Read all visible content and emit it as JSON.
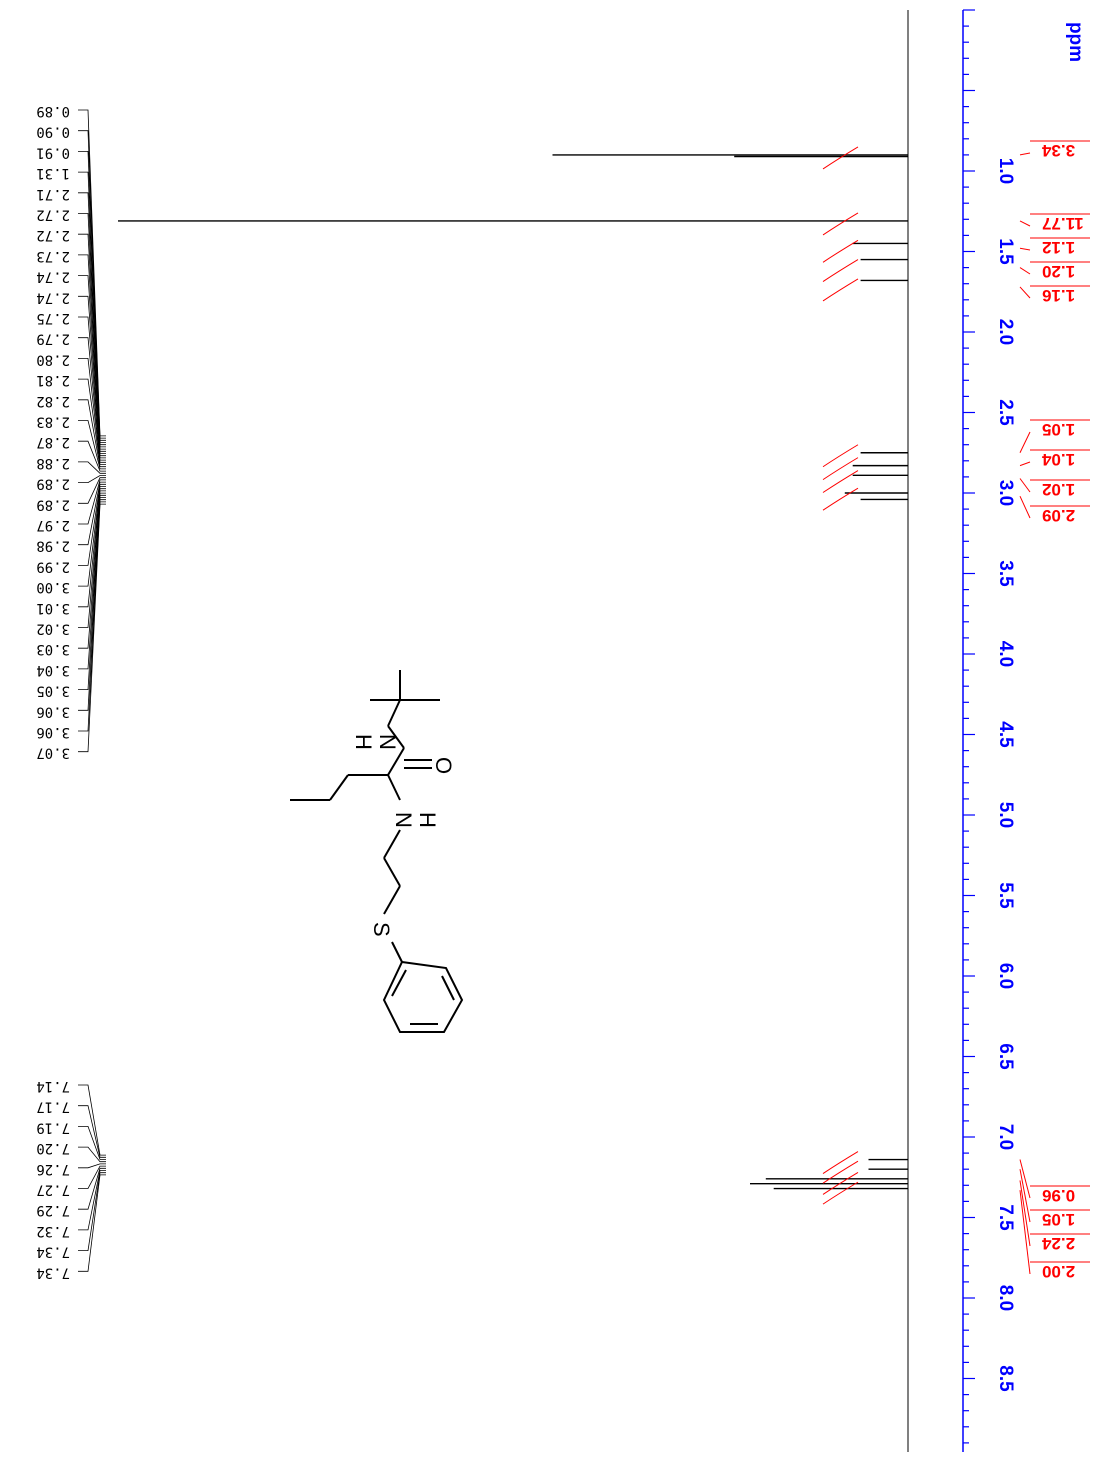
{
  "chart_data": {
    "type": "line",
    "title": "",
    "xlabel": "ppm",
    "ylabel": "",
    "axis": {
      "min": 0.0,
      "max": 9.0,
      "reversed": true,
      "grid": false,
      "orientation": "vertical"
    },
    "ticks": [
      "1.0",
      "1.5",
      "2.0",
      "2.5",
      "3.0",
      "3.5",
      "4.0",
      "4.5",
      "5.0",
      "5.5",
      "6.0",
      "6.5",
      "7.0",
      "7.5",
      "8.0",
      "8.5"
    ],
    "tick_values": [
      1.0,
      1.5,
      2.0,
      2.5,
      3.0,
      3.5,
      4.0,
      4.5,
      5.0,
      5.5,
      6.0,
      6.5,
      7.0,
      7.5,
      8.0,
      8.5
    ],
    "peak_labels_group1": [
      "0.89",
      "0.90",
      "0.91",
      "1.31",
      "2.71",
      "2.72",
      "2.72",
      "2.73",
      "2.74",
      "2.74",
      "2.75",
      "2.79",
      "2.80",
      "2.81",
      "2.82",
      "2.83",
      "2.87",
      "2.88",
      "2.89",
      "2.89",
      "2.97",
      "2.98",
      "2.99",
      "3.00",
      "3.01",
      "3.02",
      "3.03",
      "3.04",
      "3.05",
      "3.06",
      "3.06",
      "3.07"
    ],
    "peak_labels_group2": [
      "7.14",
      "7.17",
      "7.19",
      "7.20",
      "7.26",
      "7.27",
      "7.29",
      "7.32",
      "7.34",
      "7.34"
    ],
    "peaks": [
      {
        "ppm": 0.9,
        "height": 0.45
      },
      {
        "ppm": 0.91,
        "height": 0.22
      },
      {
        "ppm": 1.31,
        "height": 1.0
      },
      {
        "ppm": 1.45,
        "height": 0.07
      },
      {
        "ppm": 1.55,
        "height": 0.06
      },
      {
        "ppm": 1.68,
        "height": 0.06
      },
      {
        "ppm": 2.75,
        "height": 0.06
      },
      {
        "ppm": 2.83,
        "height": 0.07
      },
      {
        "ppm": 2.89,
        "height": 0.07
      },
      {
        "ppm": 3.0,
        "height": 0.08
      },
      {
        "ppm": 3.04,
        "height": 0.06
      },
      {
        "ppm": 7.14,
        "height": 0.05
      },
      {
        "ppm": 7.2,
        "height": 0.05
      },
      {
        "ppm": 7.26,
        "height": 0.18
      },
      {
        "ppm": 7.29,
        "height": 0.2
      },
      {
        "ppm": 7.32,
        "height": 0.17
      }
    ],
    "integrals": [
      {
        "value": "3.34",
        "ppm": 0.9
      },
      {
        "value": "11.77",
        "ppm": 1.31
      },
      {
        "value": "1.12",
        "ppm": 1.48
      },
      {
        "value": "1.20",
        "ppm": 1.6
      },
      {
        "value": "1.16",
        "ppm": 1.72
      },
      {
        "value": "1.05",
        "ppm": 2.75
      },
      {
        "value": "1.04",
        "ppm": 2.83
      },
      {
        "value": "1.02",
        "ppm": 2.91
      },
      {
        "value": "2.09",
        "ppm": 3.02
      },
      {
        "value": "0.96",
        "ppm": 7.14
      },
      {
        "value": "1.05",
        "ppm": 7.2
      },
      {
        "value": "2.24",
        "ppm": 7.27
      },
      {
        "value": "2.00",
        "ppm": 7.33
      }
    ],
    "structure_atoms": [
      "N",
      "H",
      "O",
      "N",
      "H",
      "S"
    ]
  },
  "colors": {
    "axis": "#0000ff",
    "integral": "#ff0000",
    "spectrum": "#000000"
  }
}
